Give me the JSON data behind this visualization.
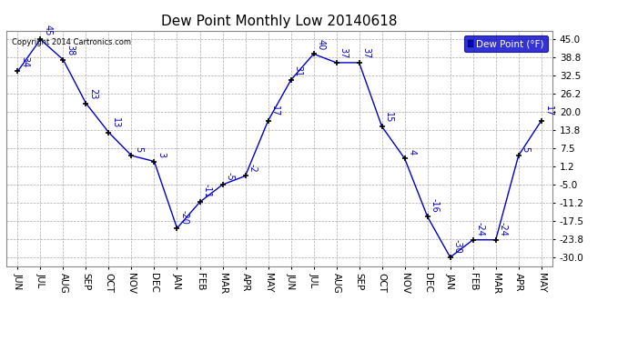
{
  "title": "Dew Point Monthly Low 20140618",
  "categories": [
    "JUN",
    "JUL",
    "AUG",
    "SEP",
    "OCT",
    "NOV",
    "DEC",
    "JAN",
    "FEB",
    "MAR",
    "APR",
    "MAY",
    "JUN",
    "JUL",
    "AUG",
    "SEP",
    "OCT",
    "NOV",
    "DEC",
    "JAN",
    "FEB",
    "MAR",
    "APR",
    "MAY"
  ],
  "values": [
    34,
    45,
    38,
    23,
    13,
    5,
    3,
    -20,
    -11,
    -5,
    -2,
    17,
    31,
    40,
    37,
    37,
    15,
    4,
    -16,
    -30,
    -24,
    -24,
    5,
    17
  ],
  "yticks": [
    45.0,
    38.8,
    32.5,
    26.2,
    20.0,
    13.8,
    7.5,
    1.2,
    -5.0,
    -11.2,
    -17.5,
    -23.8,
    -30.0
  ],
  "ylim": [
    -33,
    48
  ],
  "xlim": [
    -0.5,
    23.5
  ],
  "line_color": "#0000cc",
  "marker": "+",
  "marker_color": "#000000",
  "label_color": "#0000cc",
  "background_color": "#ffffff",
  "grid_color": "#aaaaaa",
  "copyright_text": "Copyright 2014 Cartronics.com",
  "legend_label": "Dew Point (°F)",
  "legend_bg": "#0000cc",
  "legend_fg": "#ffffff",
  "title_fontsize": 11,
  "tick_fontsize": 7.5,
  "label_fontsize": 7
}
